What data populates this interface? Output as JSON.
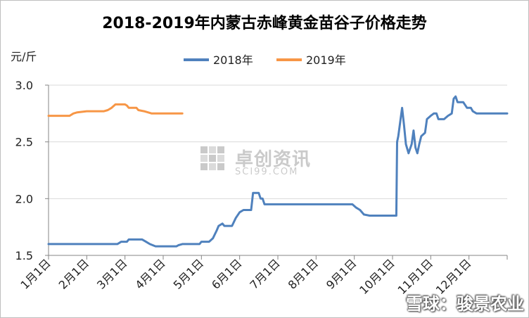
{
  "chart_data": {
    "type": "line",
    "title": "2018-2019年内蒙古赤峰黄金苗谷子价格走势",
    "ylabel": "元/斤",
    "xlabel": "",
    "ylim": [
      1.5,
      3.0
    ],
    "yticks": [
      "1.5",
      "2.0",
      "2.5",
      "3.0"
    ],
    "x_tick_labels": [
      "1月1日",
      "2月1日",
      "3月1日",
      "4月1日",
      "5月1日",
      "6月1日",
      "7月1日",
      "8月1日",
      "9月1日",
      "10月1日",
      "11月1日",
      "12月1日"
    ],
    "x_range_months": [
      1,
      13
    ],
    "grid": "horizontal",
    "legend_position": "top-center",
    "series": [
      {
        "name": "2018年",
        "color": "#4f81bd",
        "points": [
          [
            1.0,
            1.6
          ],
          [
            2.0,
            1.6
          ],
          [
            2.4,
            1.6
          ],
          [
            2.8,
            1.6
          ],
          [
            2.85,
            1.61
          ],
          [
            2.9,
            1.62
          ],
          [
            3.05,
            1.62
          ],
          [
            3.1,
            1.64
          ],
          [
            3.45,
            1.64
          ],
          [
            3.55,
            1.62
          ],
          [
            3.65,
            1.6
          ],
          [
            3.8,
            1.58
          ],
          [
            4.35,
            1.58
          ],
          [
            4.4,
            1.59
          ],
          [
            4.5,
            1.6
          ],
          [
            4.95,
            1.6
          ],
          [
            5.0,
            1.62
          ],
          [
            5.2,
            1.62
          ],
          [
            5.3,
            1.65
          ],
          [
            5.4,
            1.72
          ],
          [
            5.45,
            1.76
          ],
          [
            5.55,
            1.78
          ],
          [
            5.6,
            1.76
          ],
          [
            5.8,
            1.76
          ],
          [
            5.9,
            1.83
          ],
          [
            6.0,
            1.88
          ],
          [
            6.1,
            1.9
          ],
          [
            6.3,
            1.9
          ],
          [
            6.35,
            2.05
          ],
          [
            6.5,
            2.05
          ],
          [
            6.55,
            2.0
          ],
          [
            6.6,
            2.0
          ],
          [
            6.65,
            1.95
          ],
          [
            7.0,
            1.95
          ],
          [
            8.95,
            1.95
          ],
          [
            9.05,
            1.92
          ],
          [
            9.15,
            1.9
          ],
          [
            9.25,
            1.86
          ],
          [
            9.4,
            1.85
          ],
          [
            10.0,
            1.85
          ],
          [
            10.1,
            1.85
          ],
          [
            10.12,
            2.5
          ],
          [
            10.15,
            2.55
          ],
          [
            10.25,
            2.8
          ],
          [
            10.3,
            2.65
          ],
          [
            10.35,
            2.48
          ],
          [
            10.42,
            2.4
          ],
          [
            10.5,
            2.48
          ],
          [
            10.55,
            2.6
          ],
          [
            10.6,
            2.45
          ],
          [
            10.65,
            2.4
          ],
          [
            10.7,
            2.48
          ],
          [
            10.75,
            2.55
          ],
          [
            10.85,
            2.58
          ],
          [
            10.9,
            2.7
          ],
          [
            11.0,
            2.73
          ],
          [
            11.08,
            2.75
          ],
          [
            11.15,
            2.75
          ],
          [
            11.2,
            2.7
          ],
          [
            11.35,
            2.7
          ],
          [
            11.45,
            2.73
          ],
          [
            11.55,
            2.75
          ],
          [
            11.6,
            2.88
          ],
          [
            11.65,
            2.9
          ],
          [
            11.7,
            2.85
          ],
          [
            11.85,
            2.85
          ],
          [
            11.95,
            2.8
          ],
          [
            12.05,
            2.8
          ],
          [
            12.1,
            2.77
          ],
          [
            12.2,
            2.75
          ],
          [
            13.0,
            2.75
          ]
        ]
      },
      {
        "name": "2019年",
        "color": "#f79646",
        "points": [
          [
            1.0,
            2.73
          ],
          [
            1.55,
            2.73
          ],
          [
            1.65,
            2.75
          ],
          [
            1.75,
            2.76
          ],
          [
            2.0,
            2.77
          ],
          [
            2.45,
            2.77
          ],
          [
            2.55,
            2.78
          ],
          [
            2.65,
            2.8
          ],
          [
            2.75,
            2.83
          ],
          [
            3.0,
            2.83
          ],
          [
            3.05,
            2.82
          ],
          [
            3.1,
            2.8
          ],
          [
            3.3,
            2.8
          ],
          [
            3.35,
            2.78
          ],
          [
            3.5,
            2.77
          ],
          [
            3.6,
            2.76
          ],
          [
            3.7,
            2.75
          ],
          [
            4.5,
            2.75
          ]
        ]
      }
    ]
  },
  "watermark": {
    "cn": "卓创资讯",
    "en": "SCI99.COM"
  },
  "credit": {
    "text": "雪球：骏景农业"
  }
}
